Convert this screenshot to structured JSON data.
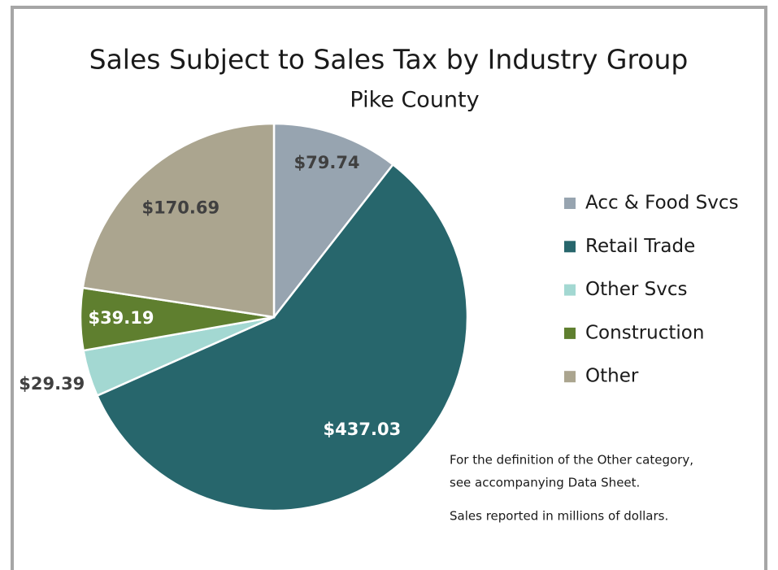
{
  "chart_data": {
    "type": "pie",
    "title": "Sales Subject to Sales Tax by Industry Group",
    "subtitle": "Pike County",
    "categories": [
      "Acc & Food Svcs",
      "Retail Trade",
      "Other Svcs",
      "Construction",
      "Other"
    ],
    "values": [
      79.74,
      437.03,
      29.39,
      39.19,
      170.69
    ],
    "value_labels": [
      "$79.74",
      "$437.03",
      "$29.39",
      "$39.19",
      "$170.69"
    ],
    "colors": [
      "#97a4b0",
      "#27666c",
      "#a3d8d2",
      "#5f7f2f",
      "#aba58f"
    ],
    "label_colors": [
      "#404040",
      "#ffffff",
      "#404040",
      "#ffffff",
      "#404040"
    ],
    "legend": "right",
    "annotations": [
      "For the definition of the Other category,",
      "see accompanying Data Sheet.",
      "Sales reported in millions of dollars."
    ]
  }
}
